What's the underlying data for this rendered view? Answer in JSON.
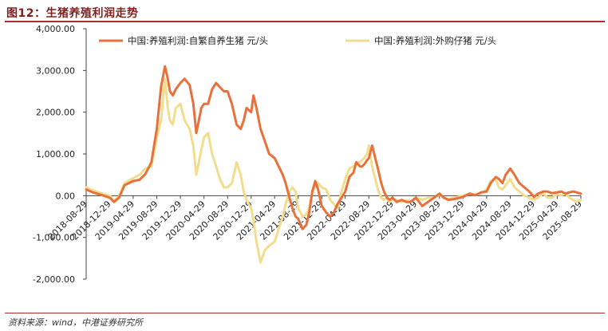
{
  "figure": {
    "title": "图12：生猪养殖利润走势",
    "source": "资料来源：wind，中港证券研究所"
  },
  "chart_data": {
    "type": "line",
    "title": "",
    "xlabel": "",
    "ylabel": "",
    "ylim": [
      -2000,
      4000
    ],
    "yticks": [
      "4,000.00",
      "3,000.00",
      "2,000.00",
      "1,000.00",
      "0.00",
      "-1,000.00",
      "-2,000.00"
    ],
    "ytick_values": [
      4000,
      3000,
      2000,
      1000,
      0,
      -1000,
      -2000
    ],
    "xticks": [
      "2018-08-29",
      "2018-12-29",
      "2019-04-29",
      "2019-08-29",
      "2019-12-29",
      "2020-04-29",
      "2020-08-29",
      "2020-12-29",
      "2021-04-29",
      "2021-08-29",
      "2021-12-29",
      "2022-04-29",
      "2022-08-29",
      "2022-12-29",
      "2023-04-29",
      "2023-08-29",
      "2023-12-29",
      "2024-04-29",
      "2024-08-29",
      "2024-12-29",
      "2025-04-29",
      "2025-08-29"
    ],
    "legend_position": "top",
    "grid": false,
    "series": [
      {
        "name": "中国:养殖利润:自繁自养生猪 元/头",
        "color": "#e8703a",
        "x": [
          "2018-08-29",
          "2018-10-01",
          "2018-11-15",
          "2018-12-29",
          "2019-01-20",
          "2019-02-15",
          "2019-03-15",
          "2019-04-29",
          "2019-06-01",
          "2019-07-01",
          "2019-08-01",
          "2019-08-29",
          "2019-09-20",
          "2019-10-10",
          "2019-10-25",
          "2019-11-05",
          "2019-11-20",
          "2019-12-05",
          "2019-12-29",
          "2020-01-20",
          "2020-02-15",
          "2020-03-05",
          "2020-03-20",
          "2020-04-15",
          "2020-04-29",
          "2020-05-20",
          "2020-06-10",
          "2020-07-01",
          "2020-07-20",
          "2020-08-10",
          "2020-08-29",
          "2020-09-20",
          "2020-10-15",
          "2020-11-05",
          "2020-11-20",
          "2020-12-05",
          "2020-12-29",
          "2021-01-10",
          "2021-01-25",
          "2021-02-15",
          "2021-03-10",
          "2021-04-01",
          "2021-04-29",
          "2021-05-20",
          "2021-06-10",
          "2021-06-25",
          "2021-07-15",
          "2021-07-30",
          "2021-08-15",
          "2021-08-29",
          "2021-09-20",
          "2021-10-10",
          "2021-10-25",
          "2021-11-10",
          "2021-11-25",
          "2021-12-10",
          "2021-12-29",
          "2022-01-20",
          "2022-02-10",
          "2022-03-01",
          "2022-03-20",
          "2022-04-10",
          "2022-04-29",
          "2022-05-20",
          "2022-06-10",
          "2022-06-25",
          "2022-07-15",
          "2022-07-25",
          "2022-08-05",
          "2022-08-20",
          "2022-08-29",
          "2022-09-15",
          "2022-10-01",
          "2022-10-15",
          "2022-11-01",
          "2022-11-15",
          "2022-12-01",
          "2022-12-15",
          "2022-12-29",
          "2023-01-20",
          "2023-02-15",
          "2023-03-10",
          "2023-04-01",
          "2023-04-29",
          "2023-06-01",
          "2023-07-01",
          "2023-08-01",
          "2023-08-29",
          "2023-09-20",
          "2023-10-15",
          "2023-11-15",
          "2023-12-29",
          "2024-02-01",
          "2024-03-01",
          "2024-04-01",
          "2024-04-29",
          "2024-05-20",
          "2024-06-15",
          "2024-07-01",
          "2024-07-20",
          "2024-08-05",
          "2024-08-29",
          "2024-09-20",
          "2024-10-15",
          "2024-11-10",
          "2024-12-05",
          "2024-12-29",
          "2025-01-20",
          "2025-02-15",
          "2025-03-10",
          "2025-04-01",
          "2025-04-29",
          "2025-05-20",
          "2025-06-10",
          "2025-07-01",
          "2025-07-20",
          "2025-08-05",
          "2025-08-29"
        ],
        "values": [
          150,
          80,
          20,
          -50,
          -150,
          -50,
          250,
          350,
          380,
          520,
          800,
          1600,
          2600,
          3100,
          2800,
          2500,
          2400,
          2550,
          2700,
          2800,
          2650,
          2200,
          1500,
          2100,
          2200,
          2200,
          2550,
          2700,
          2600,
          2500,
          2500,
          2200,
          1700,
          1600,
          1800,
          2100,
          2000,
          2400,
          2100,
          1600,
          1300,
          1000,
          900,
          700,
          500,
          300,
          -50,
          -300,
          -500,
          -550,
          -800,
          -700,
          -400,
          100,
          350,
          150,
          -250,
          -400,
          -500,
          -400,
          -200,
          -50,
          100,
          450,
          550,
          800,
          700,
          700,
          750,
          850,
          900,
          1200,
          900,
          650,
          300,
          100,
          -50,
          -100,
          -50,
          -150,
          -100,
          -150,
          -150,
          -50,
          -250,
          -150,
          -50,
          50,
          -50,
          -100,
          -80,
          -30,
          50,
          10,
          80,
          100,
          300,
          450,
          400,
          300,
          500,
          650,
          500,
          300,
          200,
          100,
          -30,
          50,
          100,
          100,
          60,
          80,
          100,
          50,
          80,
          100,
          80,
          50
        ]
      },
      {
        "name": "中国:养殖利润:外购仔猪 元/头",
        "color": "#f2dd8e",
        "x": [
          "2018-08-29",
          "2018-10-01",
          "2018-11-15",
          "2018-12-29",
          "2019-01-20",
          "2019-02-15",
          "2019-03-15",
          "2019-04-29",
          "2019-06-01",
          "2019-07-01",
          "2019-08-01",
          "2019-08-29",
          "2019-09-20",
          "2019-10-10",
          "2019-10-25",
          "2019-11-05",
          "2019-11-20",
          "2019-12-05",
          "2019-12-29",
          "2020-01-20",
          "2020-02-15",
          "2020-03-05",
          "2020-03-20",
          "2020-04-15",
          "2020-04-29",
          "2020-05-20",
          "2020-06-10",
          "2020-07-01",
          "2020-07-20",
          "2020-08-10",
          "2020-08-29",
          "2020-09-20",
          "2020-10-15",
          "2020-11-05",
          "2020-11-20",
          "2020-12-05",
          "2020-12-29",
          "2021-01-10",
          "2021-01-25",
          "2021-02-15",
          "2021-03-10",
          "2021-04-01",
          "2021-04-29",
          "2021-05-20",
          "2021-06-10",
          "2021-06-25",
          "2021-07-15",
          "2021-07-30",
          "2021-08-15",
          "2021-08-29",
          "2021-09-20",
          "2021-10-10",
          "2021-10-25",
          "2021-11-10",
          "2021-11-25",
          "2021-12-10",
          "2021-12-29",
          "2022-01-20",
          "2022-02-10",
          "2022-03-01",
          "2022-03-20",
          "2022-04-10",
          "2022-04-29",
          "2022-05-20",
          "2022-06-10",
          "2022-06-25",
          "2022-07-15",
          "2022-07-25",
          "2022-08-05",
          "2022-08-20",
          "2022-08-29",
          "2022-09-15",
          "2022-10-01",
          "2022-10-15",
          "2022-11-01",
          "2022-11-15",
          "2022-12-01",
          "2022-12-15",
          "2022-12-29",
          "2023-01-20",
          "2023-02-15",
          "2023-03-10",
          "2023-04-01",
          "2023-04-29",
          "2023-06-01",
          "2023-07-01",
          "2023-08-01",
          "2023-08-29",
          "2023-09-20",
          "2023-10-15",
          "2023-11-15",
          "2023-12-29",
          "2024-02-01",
          "2024-03-01",
          "2024-04-01",
          "2024-04-29",
          "2024-05-20",
          "2024-06-15",
          "2024-07-01",
          "2024-07-20",
          "2024-08-05",
          "2024-08-29",
          "2024-09-20",
          "2024-10-15",
          "2024-11-10",
          "2024-12-05",
          "2024-12-29",
          "2025-01-20",
          "2025-02-15",
          "2025-03-10",
          "2025-04-01",
          "2025-04-29",
          "2025-05-20",
          "2025-06-10",
          "2025-07-01",
          "2025-07-20",
          "2025-08-05",
          "2025-08-29"
        ],
        "values": [
          200,
          130,
          60,
          0,
          -120,
          -20,
          300,
          420,
          500,
          650,
          700,
          1400,
          1800,
          2800,
          2100,
          1800,
          1700,
          2100,
          2200,
          1800,
          1600,
          1200,
          500,
          1100,
          1400,
          1500,
          1000,
          700,
          400,
          200,
          200,
          300,
          800,
          500,
          100,
          -100,
          -300,
          -600,
          -1100,
          -1600,
          -1300,
          -1200,
          -1100,
          -800,
          -500,
          -200,
          100,
          200,
          100,
          -300,
          -500,
          -450,
          -300,
          100,
          200,
          300,
          200,
          150,
          -100,
          -200,
          -300,
          100,
          400,
          650,
          700,
          800,
          800,
          850,
          900,
          1000,
          1200,
          700,
          400,
          150,
          -50,
          -100,
          -50,
          -150,
          -100,
          -100,
          -150,
          -100,
          -150,
          -50,
          -100,
          -50,
          -50,
          30,
          -50,
          -80,
          -50,
          0,
          50,
          20,
          50,
          150,
          350,
          400,
          200,
          150,
          250,
          400,
          200,
          100,
          0,
          -50,
          -100,
          -50,
          50,
          -50,
          -50,
          30,
          10,
          50,
          -50,
          -100,
          -150,
          -100
        ]
      }
    ]
  }
}
